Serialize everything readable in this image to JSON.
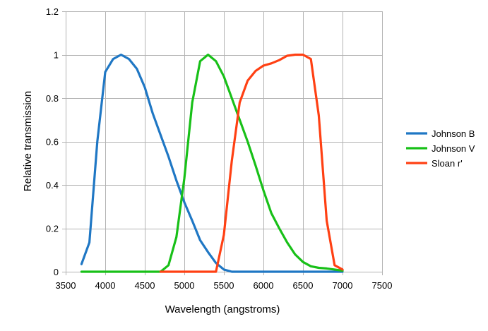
{
  "chart_data": {
    "type": "line",
    "title": "",
    "xlabel": "Wavelength (angstroms)",
    "ylabel": "Relative transmission",
    "xlim": [
      3500,
      7500
    ],
    "ylim": [
      0,
      1.2
    ],
    "x_ticks": [
      "3500",
      "4000",
      "4500",
      "5000",
      "5500",
      "6000",
      "6500",
      "7000",
      "7500"
    ],
    "y_ticks": [
      "0",
      "0.2",
      "0.4",
      "0.6",
      "0.8",
      "1",
      "1.2"
    ],
    "grid": true,
    "legend_position": "right",
    "series": [
      {
        "name": "Johnson B",
        "color": "#1f77c4",
        "points": [
          [
            3700,
            0.035
          ],
          [
            3800,
            0.135
          ],
          [
            3900,
            0.6
          ],
          [
            4000,
            0.92
          ],
          [
            4100,
            0.98
          ],
          [
            4200,
            1.0
          ],
          [
            4300,
            0.98
          ],
          [
            4400,
            0.935
          ],
          [
            4500,
            0.85
          ],
          [
            4600,
            0.73
          ],
          [
            4700,
            0.63
          ],
          [
            4800,
            0.53
          ],
          [
            4900,
            0.42
          ],
          [
            5000,
            0.32
          ],
          [
            5100,
            0.235
          ],
          [
            5200,
            0.145
          ],
          [
            5300,
            0.09
          ],
          [
            5400,
            0.04
          ],
          [
            5500,
            0.01
          ],
          [
            5600,
            0.0
          ],
          [
            6000,
            0.0
          ],
          [
            6500,
            0.0
          ],
          [
            7000,
            0.0
          ]
        ]
      },
      {
        "name": "Johnson V",
        "color": "#18c018",
        "points": [
          [
            3700,
            0.0
          ],
          [
            4700,
            0.0
          ],
          [
            4800,
            0.03
          ],
          [
            4900,
            0.16
          ],
          [
            5000,
            0.43
          ],
          [
            5100,
            0.78
          ],
          [
            5200,
            0.97
          ],
          [
            5300,
            1.0
          ],
          [
            5400,
            0.97
          ],
          [
            5500,
            0.9
          ],
          [
            5600,
            0.8
          ],
          [
            5700,
            0.7
          ],
          [
            5800,
            0.6
          ],
          [
            5900,
            0.49
          ],
          [
            6000,
            0.375
          ],
          [
            6100,
            0.27
          ],
          [
            6200,
            0.2
          ],
          [
            6300,
            0.135
          ],
          [
            6400,
            0.08
          ],
          [
            6500,
            0.045
          ],
          [
            6600,
            0.025
          ],
          [
            6700,
            0.018
          ],
          [
            6800,
            0.015
          ],
          [
            6900,
            0.01
          ],
          [
            7000,
            0.005
          ]
        ]
      },
      {
        "name": "Sloan r'",
        "color": "#ff4013",
        "points": [
          [
            4700,
            0.0
          ],
          [
            5400,
            0.0
          ],
          [
            5500,
            0.17
          ],
          [
            5600,
            0.51
          ],
          [
            5700,
            0.78
          ],
          [
            5800,
            0.88
          ],
          [
            5900,
            0.925
          ],
          [
            6000,
            0.95
          ],
          [
            6100,
            0.96
          ],
          [
            6200,
            0.975
          ],
          [
            6300,
            0.995
          ],
          [
            6400,
            1.0
          ],
          [
            6500,
            1.0
          ],
          [
            6600,
            0.98
          ],
          [
            6700,
            0.72
          ],
          [
            6800,
            0.235
          ],
          [
            6900,
            0.03
          ],
          [
            7000,
            0.01
          ]
        ]
      }
    ]
  }
}
